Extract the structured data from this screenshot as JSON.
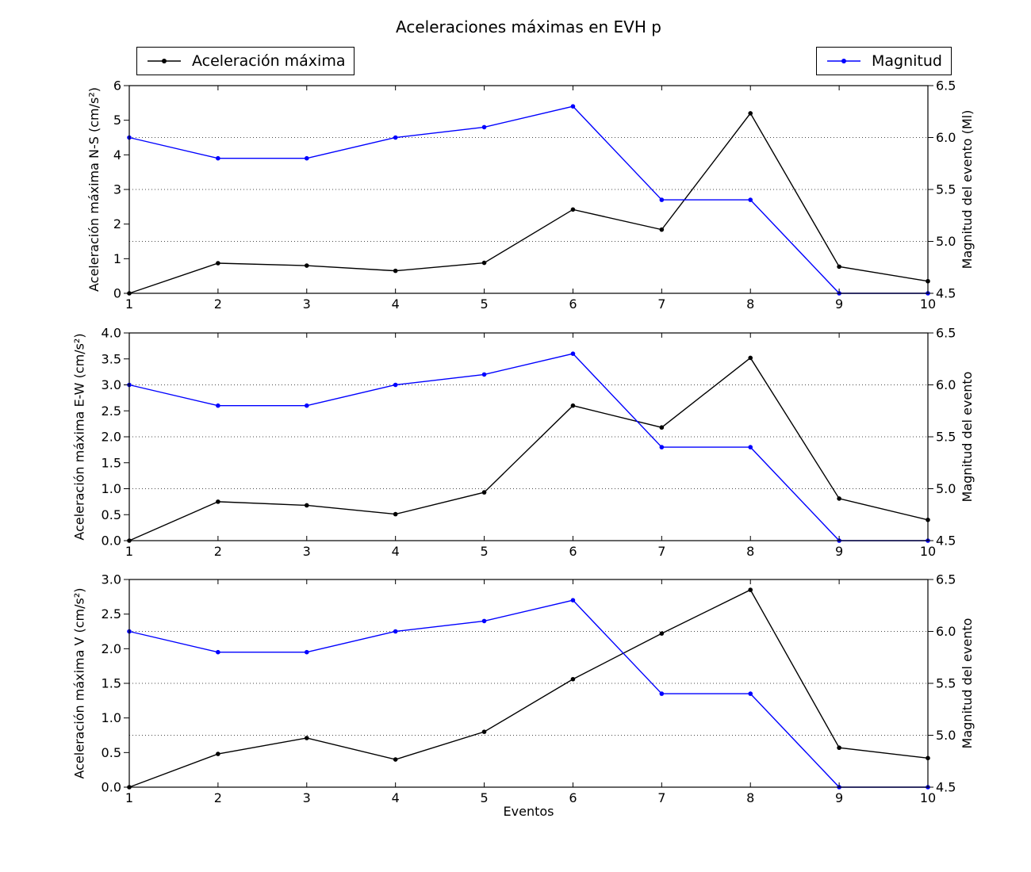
{
  "figure": {
    "title": "Aceleraciones máximas en EVH p",
    "xlabel": "Eventos",
    "legends": [
      {
        "label": "Aceleración máxima",
        "color": "#000000"
      },
      {
        "label": "Magnitud",
        "color": "#0000ff"
      }
    ]
  },
  "chart_data": [
    {
      "type": "line",
      "id": "ns",
      "x": [
        1,
        2,
        3,
        4,
        5,
        6,
        7,
        8,
        9,
        10
      ],
      "xticks": [
        "1",
        "2",
        "3",
        "4",
        "5",
        "6",
        "7",
        "8",
        "9",
        "10"
      ],
      "ylabel_left": "Aceleración máxima N-S (cm/s²)",
      "ylabel_right": "Magnitud del evento (Ml)",
      "ylim_left": [
        0,
        6
      ],
      "yticks_left": [
        "0",
        "1",
        "2",
        "3",
        "4",
        "5",
        "6"
      ],
      "ylim_right": [
        4.5,
        6.5
      ],
      "yticks_right": [
        "4.5",
        "5.0",
        "5.5",
        "6.0",
        "6.5"
      ],
      "grid_values_right": [
        5.0,
        5.5,
        6.0
      ],
      "grid": true,
      "series": [
        {
          "name": "Aceleración máxima",
          "axis": "left",
          "color": "#000000",
          "values": [
            0.0,
            0.87,
            0.8,
            0.65,
            0.88,
            2.42,
            1.84,
            5.2,
            0.77,
            0.35
          ]
        },
        {
          "name": "Magnitud",
          "axis": "right",
          "color": "#0000ff",
          "values": [
            6.0,
            5.8,
            5.8,
            6.0,
            6.1,
            6.3,
            5.4,
            5.4,
            4.5,
            4.5
          ]
        }
      ]
    },
    {
      "type": "line",
      "id": "ew",
      "x": [
        1,
        2,
        3,
        4,
        5,
        6,
        7,
        8,
        9,
        10
      ],
      "xticks": [
        "1",
        "2",
        "3",
        "4",
        "5",
        "6",
        "7",
        "8",
        "9",
        "10"
      ],
      "ylabel_left": "Aceleración máxima E-W (cm/s²)",
      "ylabel_right": "Magnitud del evento",
      "ylim_left": [
        0,
        4
      ],
      "yticks_left": [
        "0.0",
        "0.5",
        "1.0",
        "1.5",
        "2.0",
        "2.5",
        "3.0",
        "3.5",
        "4.0"
      ],
      "ylim_right": [
        4.5,
        6.5
      ],
      "yticks_right": [
        "4.5",
        "5.0",
        "5.5",
        "6.0",
        "6.5"
      ],
      "grid_values_right": [
        5.0,
        5.5,
        6.0
      ],
      "grid": true,
      "series": [
        {
          "name": "Aceleración máxima",
          "axis": "left",
          "color": "#000000",
          "values": [
            0.0,
            0.75,
            0.68,
            0.51,
            0.93,
            2.6,
            2.18,
            3.52,
            0.81,
            0.4
          ]
        },
        {
          "name": "Magnitud",
          "axis": "right",
          "color": "#0000ff",
          "values": [
            6.0,
            5.8,
            5.8,
            6.0,
            6.1,
            6.3,
            5.4,
            5.4,
            4.5,
            4.5
          ]
        }
      ]
    },
    {
      "type": "line",
      "id": "v",
      "x": [
        1,
        2,
        3,
        4,
        5,
        6,
        7,
        8,
        9,
        10
      ],
      "xticks": [
        "1",
        "2",
        "3",
        "4",
        "5",
        "6",
        "7",
        "8",
        "9",
        "10"
      ],
      "xlabel": "Eventos",
      "ylabel_left": "Aceleración máxima V (cm/s²)",
      "ylabel_right": "Magnitud del evento",
      "ylim_left": [
        0,
        3
      ],
      "yticks_left": [
        "0.0",
        "0.5",
        "1.0",
        "1.5",
        "2.0",
        "2.5",
        "3.0"
      ],
      "ylim_right": [
        4.5,
        6.5
      ],
      "yticks_right": [
        "4.5",
        "5.0",
        "5.5",
        "6.0",
        "6.5"
      ],
      "grid_values_right": [
        5.0,
        5.5,
        6.0
      ],
      "grid": true,
      "series": [
        {
          "name": "Aceleración máxima",
          "axis": "left",
          "color": "#000000",
          "values": [
            0.0,
            0.48,
            0.71,
            0.4,
            0.8,
            1.56,
            2.22,
            2.85,
            0.57,
            0.42
          ]
        },
        {
          "name": "Magnitud",
          "axis": "right",
          "color": "#0000ff",
          "values": [
            6.0,
            5.8,
            5.8,
            6.0,
            6.1,
            6.3,
            5.4,
            5.4,
            4.5,
            4.5
          ]
        }
      ]
    }
  ]
}
